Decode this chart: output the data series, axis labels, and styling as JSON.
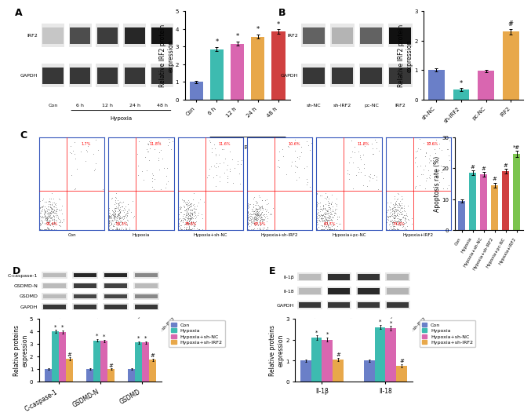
{
  "panel_A_bar": {
    "categories": [
      "Con",
      "6 h",
      "12 h",
      "24 h",
      "48 h"
    ],
    "values": [
      1.0,
      2.85,
      3.15,
      3.55,
      3.85
    ],
    "errors": [
      0.05,
      0.12,
      0.12,
      0.12,
      0.12
    ],
    "colors": [
      "#6a7fc8",
      "#3dbbb0",
      "#d966b0",
      "#e8a84a",
      "#d04040"
    ],
    "ylabel": "Relative IRF2 protein\nexpression",
    "ylim": [
      0,
      5
    ],
    "yticks": [
      0,
      1,
      2,
      3,
      4,
      5
    ],
    "stars": [
      "",
      "*",
      "*",
      "*",
      "*"
    ],
    "hypoxia_cats": [
      "6 h",
      "12 h",
      "24 h",
      "48 h"
    ]
  },
  "panel_B_bar": {
    "categories": [
      "sh-NC",
      "sh-IRF2",
      "pc-NC",
      "IRF2"
    ],
    "values": [
      1.0,
      0.35,
      0.97,
      2.3
    ],
    "errors": [
      0.05,
      0.05,
      0.05,
      0.1
    ],
    "colors": [
      "#6a7fc8",
      "#3dbbb0",
      "#d966b0",
      "#e8a84a"
    ],
    "ylabel": "Relative IRF2 protein\nexpression",
    "ylim": [
      0,
      3
    ],
    "yticks": [
      0,
      1,
      2,
      3
    ],
    "stars": [
      "",
      "*",
      "",
      "#"
    ]
  },
  "panel_C_bar": {
    "categories": [
      "Con",
      "Hypoxia",
      "Hypoxia+sh-NC",
      "Hypoxia+sh-IRF2",
      "Hypoxia+pc-NC",
      "Hypoxia+IRF2"
    ],
    "values": [
      9.5,
      18.5,
      18.0,
      14.5,
      19.0,
      24.5
    ],
    "errors": [
      0.5,
      0.8,
      0.8,
      0.8,
      0.8,
      1.0
    ],
    "colors": [
      "#6a7fc8",
      "#3dbbb0",
      "#d966b0",
      "#e8a84a",
      "#d04040",
      "#7bc44e"
    ],
    "ylabel": "Apoptosis rate (%)",
    "ylim": [
      0,
      30
    ],
    "yticks": [
      0,
      10,
      20,
      30
    ],
    "stars": [
      "",
      "#",
      "#",
      "#",
      "#",
      "*#"
    ]
  },
  "panel_D_bar": {
    "groups": [
      "C-caspase-1",
      "GSDMD-N",
      "GSDMD"
    ],
    "series": [
      "Con",
      "Hypoxia",
      "Hypoxia+sh-NC",
      "Hypoxia+sh-IRF2"
    ],
    "values": [
      [
        1.0,
        4.0,
        3.95,
        1.8
      ],
      [
        1.0,
        3.28,
        3.22,
        1.0
      ],
      [
        1.0,
        3.1,
        3.1,
        1.75
      ]
    ],
    "errors": [
      [
        0.05,
        0.12,
        0.12,
        0.12
      ],
      [
        0.05,
        0.1,
        0.1,
        0.06
      ],
      [
        0.05,
        0.1,
        0.1,
        0.1
      ]
    ],
    "colors": [
      "#6a7fc8",
      "#3dbbb0",
      "#d966b0",
      "#e8a84a"
    ],
    "ylabel": "Relative proteins\nexpression",
    "ylim": [
      0,
      5
    ],
    "yticks": [
      0,
      1,
      2,
      3,
      4,
      5
    ],
    "stars": [
      [
        "",
        "*",
        "*",
        "#"
      ],
      [
        "",
        "*",
        "*",
        "#"
      ],
      [
        "",
        "*",
        "*",
        "#"
      ]
    ]
  },
  "panel_E_bar": {
    "groups": [
      "Il-1β",
      "Il-18"
    ],
    "series": [
      "Con",
      "Hypoxia",
      "Hypoxia+sh-NC",
      "Hypoxia+sh-IRF2"
    ],
    "values": [
      [
        1.0,
        2.1,
        2.0,
        1.05
      ],
      [
        1.0,
        2.6,
        2.55,
        0.75
      ]
    ],
    "errors": [
      [
        0.05,
        0.1,
        0.1,
        0.08
      ],
      [
        0.05,
        0.1,
        0.1,
        0.08
      ]
    ],
    "colors": [
      "#6a7fc8",
      "#3dbbb0",
      "#d966b0",
      "#e8a84a"
    ],
    "ylabel": "Relative proteins\nexpression",
    "ylim": [
      0,
      3
    ],
    "yticks": [
      0,
      1,
      2,
      3
    ],
    "stars": [
      [
        "",
        "*",
        "*",
        "#"
      ],
      [
        "",
        "*",
        "*",
        "#"
      ]
    ]
  },
  "fc_ur_pcts": [
    "1.7%",
    "11.8%",
    "11.6%",
    "10.6%",
    "11.8%",
    "19.6%"
  ],
  "fc_ll_pcts": [
    "91.4%",
    "80.3%",
    "79.8%",
    "82.4%",
    "80.7%",
    "74.8%"
  ],
  "fc_labels": [
    "Con",
    "Hypoxia",
    "Hypoxia+sh-NC",
    "Hypoxia+sh-IRF2",
    "Hypoxia+pc-NC",
    "Hypoxia+IRF2"
  ],
  "wb_bg_color": "#e8e8e8",
  "figure_bg": "#ffffff",
  "panel_label_fontsize": 9,
  "bar_fontsize": 5.5,
  "tick_fontsize": 5,
  "star_fontsize": 6
}
